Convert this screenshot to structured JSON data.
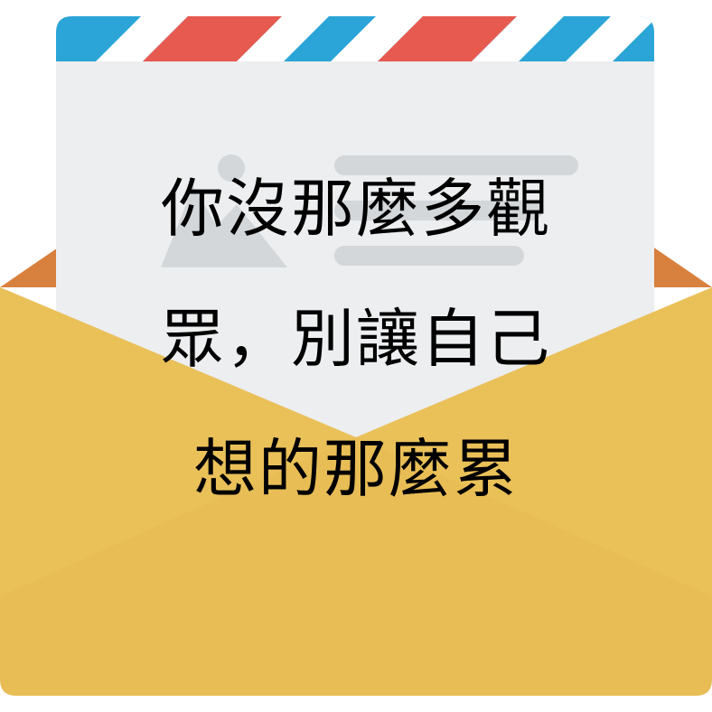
{
  "message": {
    "lines": [
      "你沒那麼多觀",
      "眾，別讓自己",
      "想的那麼累"
    ]
  },
  "colors": {
    "stripe_red": "#e65a4f",
    "stripe_blue": "#2ba5d7",
    "letter_paper": "#eceeef",
    "letter_placeholder": "#d3d7da",
    "envelope_front": "#e8bd55",
    "envelope_inner": "#d8803e",
    "text": "#000000"
  },
  "icons": {
    "envelope": "open-envelope-icon",
    "image_placeholder": "image-placeholder-icon"
  }
}
